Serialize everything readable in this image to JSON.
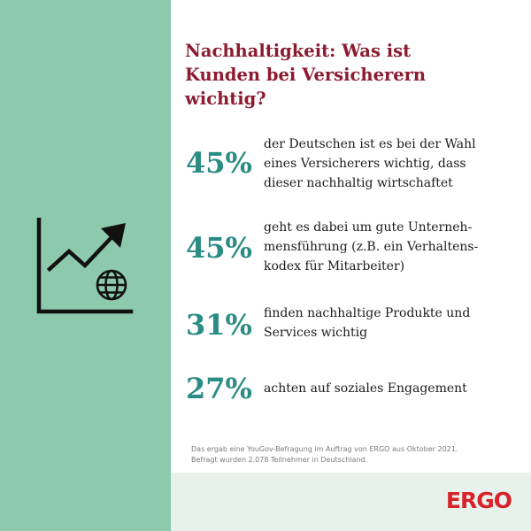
{
  "colors": {
    "left_panel": "#8cc9ad",
    "headline": "#8c1b2f",
    "stat_value": "#2a8c84",
    "body_text": "#1c1c1c",
    "footer_band": "#e7f2ec",
    "logo": "#d8232a"
  },
  "icon": "growth-chart-globe-icon",
  "headline": {
    "line1": "Nachhaltigkeit: Was ist",
    "line2": "Kunden bei Versicherern",
    "line3": "wichtig?"
  },
  "stats": [
    {
      "value": "45%",
      "lines": [
        "der Deutschen ist es bei der Wahl",
        "eines Versicherers wichtig, dass",
        "dieser nachhaltig wirtschaftet"
      ]
    },
    {
      "value": "45%",
      "lines": [
        "geht es dabei um gute Unterneh-",
        "mensführung (z.B. ein Verhaltens-",
        "kodex für Mitarbeiter)"
      ]
    },
    {
      "value": "31%",
      "lines": [
        "finden nachhaltige Produkte und",
        "Services wichtig"
      ]
    },
    {
      "value": "27%",
      "lines": [
        "achten auf soziales Engagement"
      ]
    }
  ],
  "footnote": {
    "line1": "Das ergab eine YouGov-Befragung im Auftrag von ERGO aus Oktober 2021.",
    "line2": "Befragt wurden 2.078 Teilnehmer in Deutschland."
  },
  "logo": "ERGO"
}
